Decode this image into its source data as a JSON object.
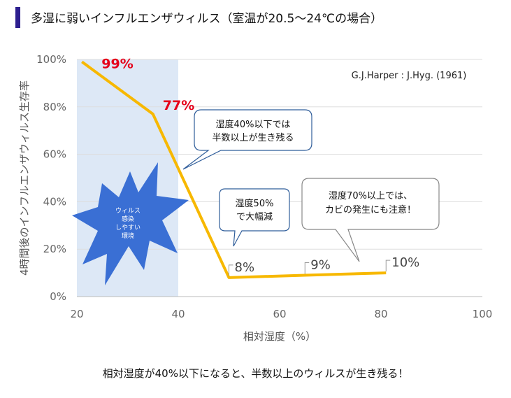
{
  "title": "多湿に弱いインフルエンザウィルス（室温が20.5〜24℃の場合）",
  "caption": "相対湿度が40%以下になると、半数以上のウィルスが生き残る！",
  "source_note": "G.J.Harper : J.Hyg. (1961)",
  "callouts": {
    "low_humidity": [
      "湿度40%以下では",
      "半数以上が生き残る"
    ],
    "humidity_50": [
      "湿度50%",
      "で大幅減"
    ],
    "humidity_70": [
      "湿度70%以上では、",
      "カビの発生にも注意！"
    ],
    "burst": [
      "ウィルス",
      "感染",
      "しやすい",
      "環境"
    ]
  },
  "colors": {
    "line": "#f7b800",
    "highlight_label": "#e5001a",
    "normal_label": "#444444",
    "shade": "#dde8f6",
    "burst": "#3a6fd4",
    "title_bar": "#2d1f8f"
  },
  "chart_data": {
    "type": "line",
    "xlabel": "相対湿度（%）",
    "ylabel": "4時間後のインフルエンザウィルス生存率",
    "xlim": [
      20,
      100
    ],
    "ylim": [
      0,
      100
    ],
    "x_ticks": [
      "20",
      "40",
      "60",
      "80",
      "100"
    ],
    "y_ticks": [
      "0%",
      "20%",
      "40%",
      "60%",
      "80%",
      "100%"
    ],
    "grid": true,
    "shaded_x_range": [
      20,
      40
    ],
    "series": [
      {
        "x": [
          21,
          35,
          50,
          65,
          81
        ],
        "y": [
          99,
          77,
          8,
          9,
          10
        ]
      }
    ],
    "data_labels": [
      {
        "x": 21,
        "y": 99,
        "text": "99%",
        "highlight": true
      },
      {
        "x": 35,
        "y": 77,
        "text": "77%",
        "highlight": true
      },
      {
        "x": 50,
        "y": 8,
        "text": "8%",
        "highlight": false
      },
      {
        "x": 65,
        "y": 9,
        "text": "9%",
        "highlight": false
      },
      {
        "x": 81,
        "y": 10,
        "text": "10%",
        "highlight": false
      }
    ]
  }
}
